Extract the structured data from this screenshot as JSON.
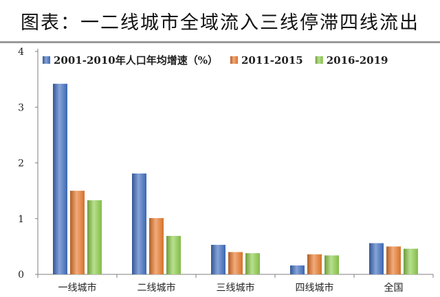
{
  "title": "图表：一二线城市全域流入三线停滞四线流出",
  "chart_data": {
    "type": "bar",
    "categories": [
      "一线城市",
      "二线城市",
      "三线城市",
      "四线城市",
      "全国"
    ],
    "series": [
      {
        "name": "2001-2010年人口年均增速（%）",
        "values": [
          3.42,
          1.81,
          0.53,
          0.16,
          0.56
        ],
        "color": "#4472C4"
      },
      {
        "name": "2011-2015",
        "values": [
          1.5,
          1.01,
          0.4,
          0.36,
          0.5
        ],
        "color": "#ED7D31"
      },
      {
        "name": "2016-2019",
        "values": [
          1.33,
          0.69,
          0.38,
          0.34,
          0.46
        ],
        "color": "#92D050"
      }
    ],
    "ylim": [
      0,
      4
    ],
    "yticks": [
      "0",
      "1",
      "2",
      "3",
      "4"
    ],
    "xlabel": "",
    "ylabel": "",
    "legend": "top",
    "grid": false
  }
}
